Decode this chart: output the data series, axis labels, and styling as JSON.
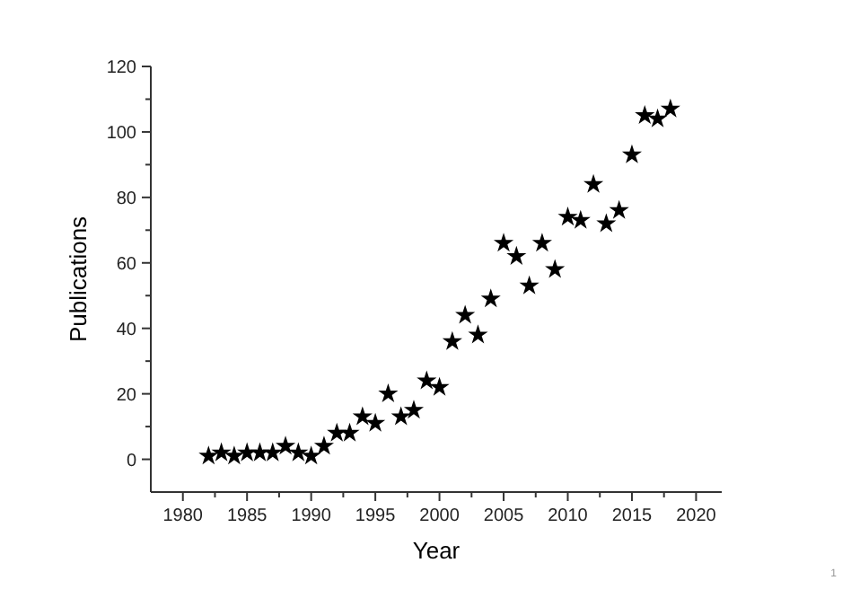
{
  "chart_data": {
    "type": "scatter",
    "xlabel": "Year",
    "ylabel": "Publications",
    "marker": "star",
    "grid": false,
    "x": [
      1982,
      1983,
      1984,
      1985,
      1986,
      1987,
      1988,
      1989,
      1990,
      1991,
      1992,
      1993,
      1994,
      1995,
      1996,
      1997,
      1998,
      1999,
      2000,
      2001,
      2002,
      2003,
      2004,
      2005,
      2006,
      2007,
      2008,
      2009,
      2010,
      2011,
      2012,
      2013,
      2014,
      2015,
      2016,
      2017,
      2018
    ],
    "series": [
      {
        "color": "#000000",
        "values": [
          1,
          2,
          1,
          2,
          2,
          2,
          4,
          2,
          1,
          4,
          8,
          8,
          13,
          11,
          20,
          13,
          15,
          24,
          22,
          36,
          44,
          38,
          49,
          66,
          62,
          53,
          66,
          58,
          74,
          73,
          84,
          72,
          76,
          93,
          105,
          104,
          107
        ]
      }
    ],
    "xlim": [
      1977.5,
      2022
    ],
    "ylim": [
      -10,
      120
    ],
    "xticks": [
      1980,
      {
        "value": 1982.5,
        "label": null
      },
      1985,
      {
        "value": 1987.5,
        "label": null
      },
      1990,
      {
        "value": 1992.5,
        "label": null
      },
      1995,
      {
        "value": 1997.5,
        "label": null
      },
      2000,
      {
        "value": 2002.5,
        "label": null
      },
      2005,
      {
        "value": 2007.5,
        "label": null
      },
      2010,
      {
        "value": 2012.5,
        "label": null
      },
      2015,
      {
        "value": 2017.5,
        "label": null
      },
      2020
    ],
    "yticks": [
      0,
      {
        "value": 10,
        "label": null
      },
      20,
      {
        "value": 30,
        "label": null
      },
      40,
      {
        "value": 50,
        "label": null
      },
      60,
      {
        "value": 70,
        "label": null
      },
      80,
      {
        "value": 90,
        "label": null
      },
      100,
      {
        "value": 110,
        "label": null
      },
      120
    ],
    "annotations": [
      "1"
    ]
  }
}
